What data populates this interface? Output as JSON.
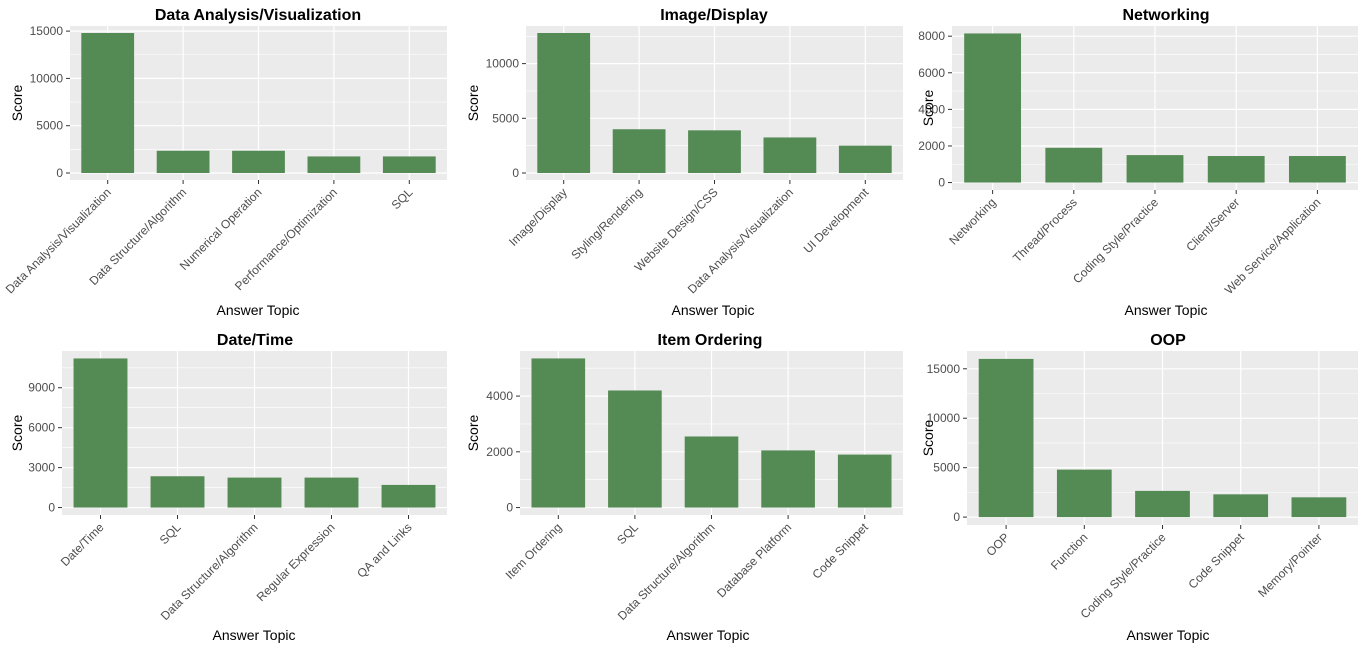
{
  "style": {
    "panel_background": "#ebebeb",
    "gridline_color": "#ffffff",
    "bar_color": "#548a53",
    "axis_text_color": "#4d4d4d",
    "title_color": "#000000"
  },
  "chart_data": [
    {
      "type": "bar",
      "title": "Data Analysis/Visualization",
      "xlabel": "Answer Topic",
      "ylabel": "Score",
      "categories": [
        "Data Analysis/Visualization",
        "Data Structure/Algorithm",
        "Numerical Operation",
        "Performance/Optimization",
        "SQL"
      ],
      "values": [
        14800,
        2350,
        2350,
        1750,
        1750
      ],
      "yticks": [
        0,
        5000,
        10000,
        15000
      ],
      "ylim": [
        -740,
        15540
      ],
      "grid": true
    },
    {
      "type": "bar",
      "title": "Image/Display",
      "xlabel": "Answer Topic",
      "ylabel": "Score",
      "categories": [
        "Image/Display",
        "Styling/Rendering",
        "Website Design/CSS",
        "Data Analysis/Visualization",
        "UI Development"
      ],
      "values": [
        12800,
        4000,
        3900,
        3250,
        2500
      ],
      "yticks": [
        0,
        5000,
        10000
      ],
      "ylim": [
        -640,
        13440
      ],
      "grid": true
    },
    {
      "type": "bar",
      "title": "Networking",
      "xlabel": "Answer Topic",
      "ylabel": "Score",
      "categories": [
        "Networking",
        "Thread/Process",
        "Coding Style/Practice",
        "Client/Server",
        "Web Service/Application"
      ],
      "values": [
        8150,
        1900,
        1500,
        1450,
        1450
      ],
      "yticks": [
        0,
        2000,
        4000,
        6000,
        8000
      ],
      "ylim": [
        -407,
        8557
      ],
      "grid": true
    },
    {
      "type": "bar",
      "title": "Date/Time",
      "xlabel": "Answer Topic",
      "ylabel": "Score",
      "categories": [
        "Date/Time",
        "SQL",
        "Data Structure/Algorithm",
        "Regular Expression",
        "QA and Links"
      ],
      "values": [
        11200,
        2350,
        2250,
        2250,
        1700
      ],
      "yticks": [
        0,
        3000,
        6000,
        9000
      ],
      "ylim": [
        -560,
        11760
      ],
      "grid": true
    },
    {
      "type": "bar",
      "title": "Item Ordering",
      "xlabel": "Answer Topic",
      "ylabel": "Score",
      "categories": [
        "Item Ordering",
        "SQL",
        "Data Structure/Algorithm",
        "Database Platform",
        "Code Snippet"
      ],
      "values": [
        5350,
        4200,
        2550,
        2050,
        1900
      ],
      "yticks": [
        0,
        2000,
        4000
      ],
      "ylim": [
        -267,
        5617
      ],
      "grid": true
    },
    {
      "type": "bar",
      "title": "OOP",
      "xlabel": "Answer Topic",
      "ylabel": "Score",
      "categories": [
        "OOP",
        "Function",
        "Coding Style/Practice",
        "Code Snippet",
        "Memory/Pointer"
      ],
      "values": [
        16000,
        4800,
        2650,
        2300,
        2000
      ],
      "yticks": [
        0,
        5000,
        10000,
        15000
      ],
      "ylim": [
        -800,
        16800
      ],
      "grid": true
    }
  ]
}
